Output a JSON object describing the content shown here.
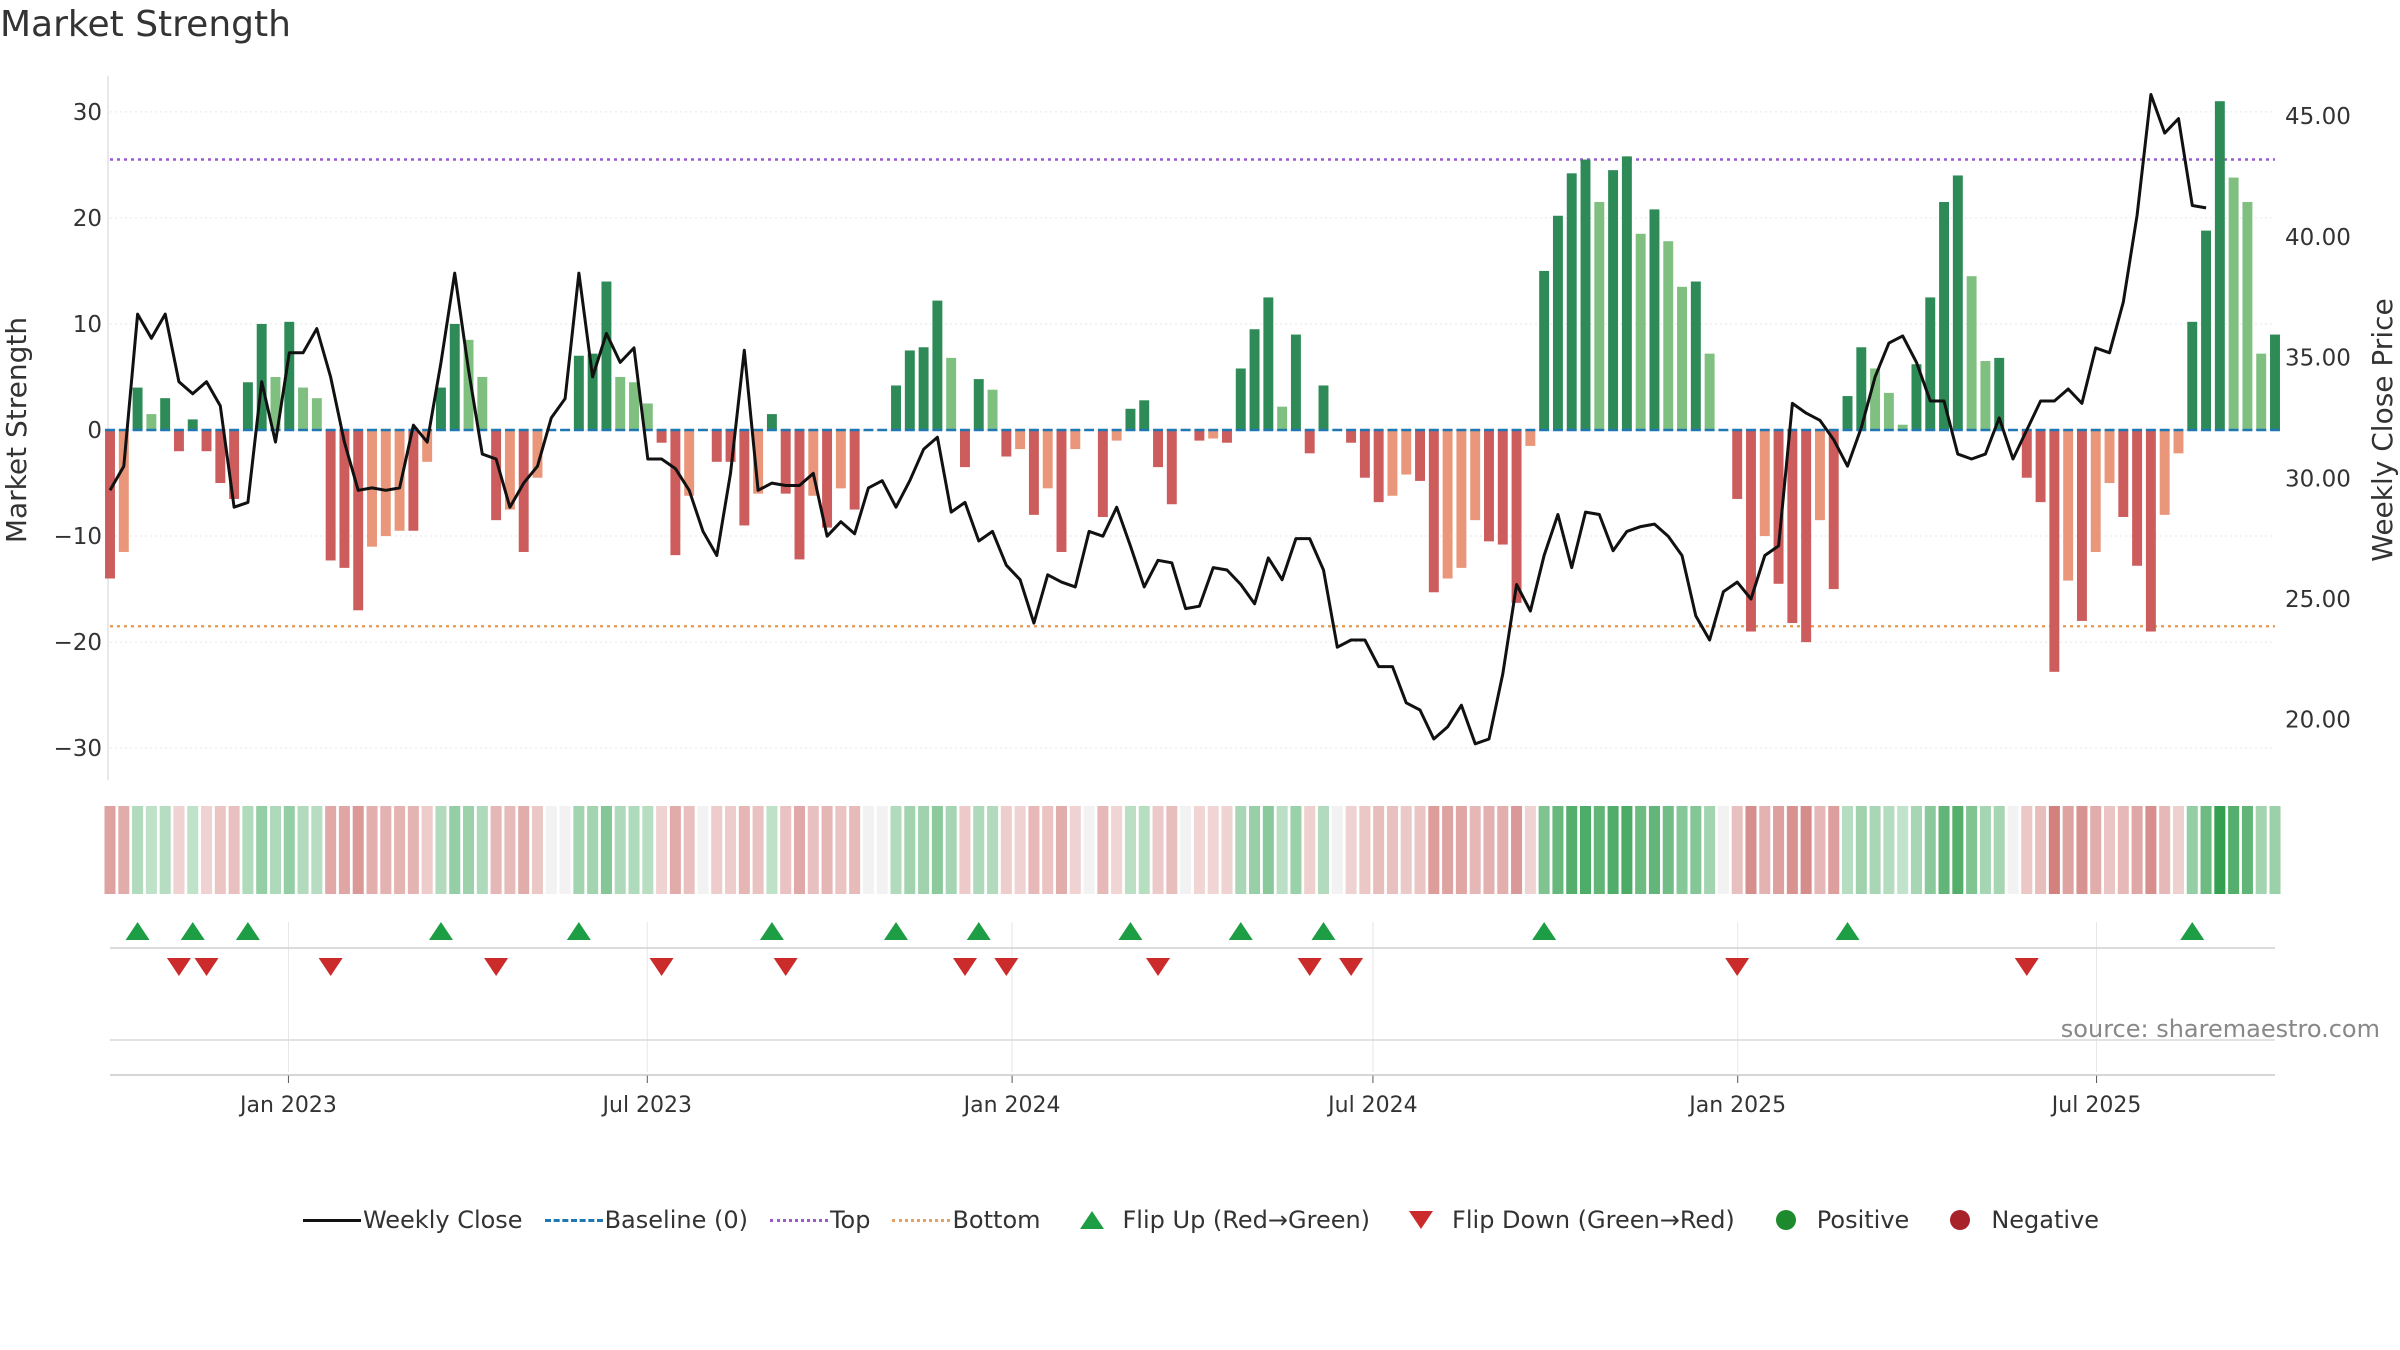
{
  "title": "Market Strength",
  "source_text": "source: sharemaestro.com",
  "colors": {
    "strong_green": "#2e8b57",
    "light_green": "#7fbf7f",
    "strong_red": "#cd5c5c",
    "light_red": "#e9967a",
    "top_line": "#9b59d0",
    "bottom_line": "#e8a060",
    "baseline": "#1f77b4",
    "flip_up": "#1e9e44",
    "flip_down": "#cc2b2b",
    "positive": "#1e8a2e",
    "negative": "#a8222a"
  },
  "legend": [
    {
      "label": "Weekly Close",
      "symbol": "line-solid",
      "color": "#111111"
    },
    {
      "label": "Baseline (0)",
      "symbol": "line-dashed",
      "color": "#1f77b4"
    },
    {
      "label": "Top",
      "symbol": "line-dotted",
      "color": "#9b59d0"
    },
    {
      "label": "Bottom",
      "symbol": "line-dotted",
      "color": "#e8a060"
    },
    {
      "label": "Flip Up (Red→Green)",
      "symbol": "triangle-up",
      "color": "#1e9e44"
    },
    {
      "label": "Flip Down (Green→Red)",
      "symbol": "triangle-down",
      "color": "#cc2b2b"
    },
    {
      "label": "Positive",
      "symbol": "dot",
      "color": "#1e8a2e"
    },
    {
      "label": "Negative",
      "symbol": "dot",
      "color": "#a8222a"
    }
  ],
  "chart_data": {
    "type": "bar",
    "ylabel": "Market Strength",
    "y2label": "Weekly Close Price",
    "ylim": [
      -33,
      33
    ],
    "y2lim": [
      17.5,
      46.5
    ],
    "yticks": [
      30,
      20,
      10,
      0,
      -10,
      -20,
      -30
    ],
    "ytick_labels": [
      "30",
      "20",
      "10",
      "0",
      "−10",
      "−20",
      "−30"
    ],
    "y2ticks": [
      45,
      40,
      35,
      30,
      25,
      20
    ],
    "y2tick_labels": [
      "45.00",
      "40.00",
      "35.00",
      "30.00",
      "25.00",
      "20.00"
    ],
    "x_start": "2022-10-03",
    "x_end": "2025-09-29",
    "xticks": [
      "2023-01-01",
      "2023-07-01",
      "2024-01-01",
      "2024-07-01",
      "2025-01-01",
      "2025-07-01"
    ],
    "xtick_labels": [
      "Jan 2023",
      "Jul 2023",
      "Jan 2024",
      "Jul 2024",
      "Jan 2025",
      "Jul 2025"
    ],
    "top_level": 25.5,
    "bottom_level": -18.5,
    "strength": [
      -14,
      -11.5,
      4,
      1.5,
      3,
      -2,
      1,
      -2,
      -5,
      -6.5,
      4.5,
      10,
      5,
      10.2,
      4,
      3,
      -12.3,
      -13,
      -17,
      -11,
      -10,
      -9.5,
      -9.5,
      -3,
      4,
      10,
      8.5,
      5,
      -8.5,
      -7.5,
      -11.5,
      -4.5,
      0,
      0,
      7,
      7.2,
      14,
      5,
      4.5,
      2.5,
      -1.2,
      -11.8,
      -6.2,
      0,
      -3,
      -3,
      -9,
      -6,
      1.5,
      -6,
      -12.2,
      -6.2,
      -9.2,
      -5.5,
      -7.5,
      0,
      0,
      4.2,
      7.5,
      7.8,
      12.2,
      6.8,
      -3.5,
      4.8,
      3.8,
      -2.5,
      -1.8,
      -8,
      -5.5,
      -11.5,
      -1.8,
      0,
      -8.2,
      -1,
      2,
      2.8,
      -3.5,
      -7,
      0,
      -1,
      -0.8,
      -1.2,
      5.8,
      9.5,
      12.5,
      2.2,
      9,
      -2.2,
      4.2,
      0,
      -1.2,
      -4.5,
      -6.8,
      -6.2,
      -4.2,
      -4.8,
      -15.3,
      -14,
      -13,
      -8.5,
      -10.5,
      -10.8,
      -16.3,
      -1.5,
      15,
      20.2,
      24.2,
      25.5,
      21.5,
      24.5,
      25.8,
      18.5,
      20.8,
      17.8,
      13.5,
      14,
      7.2,
      0,
      -6.5,
      -19,
      -10,
      -14.5,
      -18.2,
      -20,
      -8.5,
      -15,
      3.2,
      7.8,
      5.8,
      3.5,
      0.5,
      6.2,
      12.5,
      21.5,
      24,
      14.5,
      6.5,
      6.8,
      0,
      -4.5,
      -6.8,
      -22.8,
      -14.2,
      -18,
      -11.5,
      -5,
      -8.2,
      -12.8,
      -19,
      -8,
      -2.2,
      10.2,
      18.8,
      31,
      23.8,
      21.5,
      7.2,
      9
    ],
    "weekly_close": [
      29.5,
      30.5,
      36.8,
      35.8,
      36.8,
      34,
      33.5,
      34,
      33,
      28.8,
      29,
      34,
      31.5,
      35.2,
      35.2,
      36.2,
      34.2,
      31.5,
      29.5,
      29.6,
      29.5,
      29.6,
      32.2,
      31.5,
      34.8,
      38.5,
      34.5,
      31,
      30.8,
      28.8,
      29.8,
      30.5,
      32.5,
      33.3,
      38.5,
      34.2,
      36,
      34.8,
      35.4,
      30.8,
      30.8,
      30.4,
      29.5,
      27.8,
      26.8,
      30.2,
      35.3,
      29.5,
      29.8,
      29.7,
      29.7,
      30.2,
      27.6,
      28.2,
      27.7,
      29.6,
      29.9,
      28.8,
      29.9,
      31.2,
      31.7,
      28.6,
      29,
      27.4,
      27.8,
      26.4,
      25.8,
      24,
      26,
      25.7,
      25.5,
      27.8,
      27.6,
      28.8,
      27.2,
      25.5,
      26.6,
      26.5,
      24.6,
      24.7,
      26.3,
      26.2,
      25.6,
      24.8,
      26.7,
      25.8,
      27.5,
      27.5,
      26.2,
      23,
      23.3,
      23.3,
      22.2,
      22.2,
      20.7,
      20.4,
      19.2,
      19.7,
      20.6,
      19,
      19.2,
      21.9,
      25.6,
      24.5,
      26.8,
      28.5,
      26.3,
      28.6,
      28.5,
      27,
      27.8,
      28,
      28.1,
      27.6,
      26.8,
      24.3,
      23.3,
      25.3,
      25.7,
      25,
      26.8,
      27.2,
      33.1,
      32.7,
      32.4,
      31.6,
      30.5,
      32.1,
      34.2,
      35.6,
      35.9,
      34.8,
      33.2,
      33.2,
      31,
      30.8,
      31,
      32.5,
      30.8,
      32,
      33.2,
      33.2,
      33.7,
      33.1,
      35.4,
      35.2,
      37.3,
      40.9,
      45.9,
      44.3,
      44.9,
      41.3,
      41.2
    ]
  }
}
